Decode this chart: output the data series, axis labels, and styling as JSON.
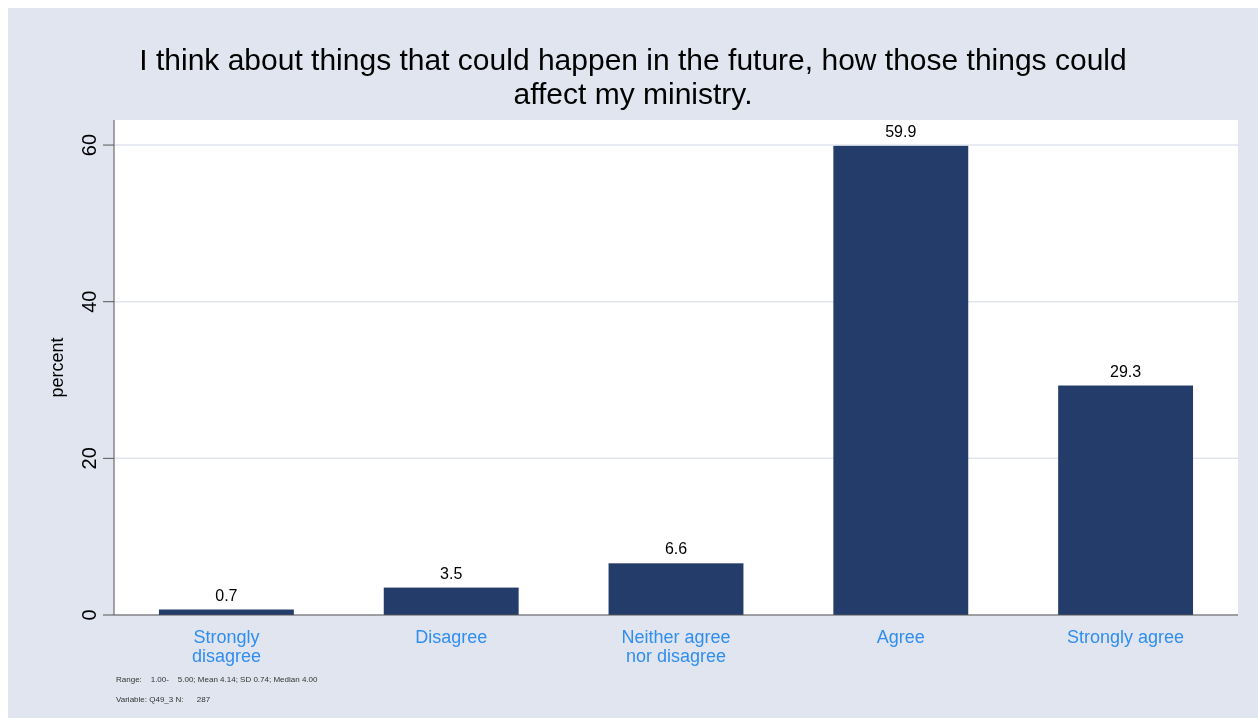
{
  "chart_data": {
    "type": "bar",
    "title": "I think about things that could happen in the future, how those things could affect my ministry.",
    "ylabel": "percent",
    "categories": [
      "Strongly disagree",
      "Disagree",
      "Neither agree nor disagree",
      "Agree",
      "Strongly agree"
    ],
    "values": [
      0.7,
      3.5,
      6.6,
      59.9,
      29.3
    ],
    "color": "#243c6a",
    "data_labels": true,
    "ylim": [
      0,
      63.2
    ],
    "yticks": [
      0,
      20,
      40,
      60
    ],
    "grid": "y",
    "annotations": [
      "Range:    1.00-    5.00; Mean 4.14; SD 0.74; Median 4.00",
      "Variable: Q49_3 N:      287"
    ]
  }
}
